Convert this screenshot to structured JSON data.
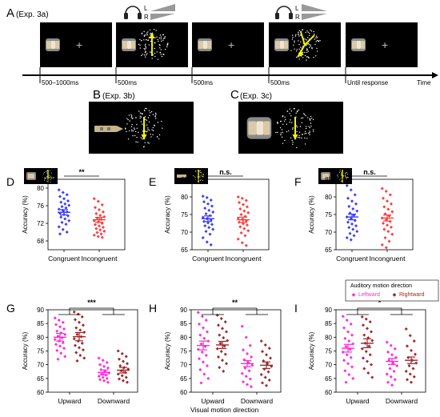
{
  "figure": {
    "panel_a": {
      "letter": "A",
      "title": "(Exp. 3a)",
      "headphone_labels": [
        "L",
        "R"
      ],
      "time_labels": [
        "500–1000ms",
        "500ms",
        "500ms",
        "500ms",
        "Until response"
      ],
      "axis_label": "Time"
    },
    "panel_b": {
      "letter": "B",
      "title": "(Exp. 3b)"
    },
    "panel_c": {
      "letter": "C",
      "title": "(Exp. 3c)"
    },
    "panel_ij_legend": {
      "title": "Auditory motion direction",
      "items": [
        "Leftward",
        "Rightward"
      ]
    },
    "shared_xlabel": "Visual motion direction",
    "colors": {
      "congruent": "#3b3bff",
      "incongruent": "#ff3b3b",
      "leftward": "#ff2bd6",
      "rightward": "#a0262a",
      "stimulus": "#f2f200"
    }
  },
  "chart_data": [
    {
      "id": "D",
      "type": "scatter",
      "ylabel": "Accuracy (%)",
      "ylim": [
        66,
        82
      ],
      "yticks": [
        68,
        72,
        76,
        80
      ],
      "categories": [
        "Congruent",
        "Incongruent"
      ],
      "significance": "**",
      "series": [
        {
          "mean": 74.5,
          "sem": 0.6,
          "points": [
            79.6,
            79.0,
            78.5,
            78.1,
            77.6,
            77.1,
            76.8,
            76.4,
            76.1,
            75.8,
            75.5,
            75.2,
            74.9,
            74.6,
            74.3,
            74.0,
            73.7,
            73.4,
            73.0,
            72.6,
            72.2,
            71.8,
            71.2,
            70.6,
            70.0,
            69.6
          ]
        },
        {
          "mean": 72.8,
          "sem": 0.55,
          "points": [
            77.6,
            77.0,
            76.2,
            75.6,
            75.1,
            74.6,
            74.2,
            73.8,
            73.5,
            73.2,
            72.9,
            72.6,
            72.3,
            72.0,
            71.7,
            71.4,
            71.1,
            70.8,
            70.5,
            70.2,
            69.9,
            69.6,
            69.3,
            69.0,
            68.8
          ]
        }
      ]
    },
    {
      "id": "E",
      "type": "scatter",
      "ylabel": "Accuracy (%)",
      "ylim": [
        65,
        85
      ],
      "yticks": [
        65,
        70,
        75,
        80,
        85
      ],
      "categories": [
        "Congruent",
        "Incongruent"
      ],
      "significance": "n.s.",
      "series": [
        {
          "mean": 73.8,
          "sem": 0.8,
          "points": [
            80.2,
            79.8,
            79.1,
            78.6,
            78.0,
            77.4,
            76.8,
            76.2,
            75.7,
            75.2,
            74.7,
            74.2,
            73.8,
            73.4,
            73.0,
            72.6,
            72.2,
            71.8,
            71.3,
            70.8,
            70.2,
            69.4,
            68.4,
            67.2,
            66.4
          ]
        },
        {
          "mean": 73.5,
          "sem": 0.75,
          "points": [
            80.0,
            79.6,
            79.0,
            78.4,
            77.8,
            77.2,
            76.6,
            76.0,
            75.5,
            75.0,
            74.5,
            74.0,
            73.6,
            73.2,
            72.8,
            72.4,
            72.0,
            71.5,
            71.0,
            70.4,
            69.8,
            69.0,
            68.0,
            67.0,
            66.2
          ]
        }
      ]
    },
    {
      "id": "F",
      "type": "scatter",
      "ylabel": "Accuracy (%)",
      "ylim": [
        65,
        85
      ],
      "yticks": [
        65,
        70,
        75,
        80,
        85
      ],
      "categories": [
        "Congruent",
        "Incongruent"
      ],
      "significance": "n.s.",
      "series": [
        {
          "mean": 74.3,
          "sem": 0.8,
          "points": [
            83.2,
            82.0,
            80.6,
            79.6,
            78.8,
            78.0,
            77.3,
            76.6,
            76.0,
            75.4,
            74.8,
            74.3,
            73.8,
            73.3,
            72.8,
            72.3,
            71.8,
            71.3,
            70.8,
            70.2,
            69.6,
            69.0,
            68.4,
            67.8
          ]
        },
        {
          "mean": 74.0,
          "sem": 0.85,
          "points": [
            82.4,
            81.6,
            80.6,
            79.6,
            78.8,
            78.0,
            77.2,
            76.5,
            75.8,
            75.2,
            74.6,
            74.0,
            73.5,
            73.0,
            72.5,
            72.0,
            71.4,
            70.8,
            70.2,
            69.4,
            68.4,
            67.4,
            66.4,
            65.6
          ]
        }
      ]
    },
    {
      "id": "G",
      "type": "scatter",
      "ylabel": "Accuracy (%)",
      "ylim": [
        60,
        90
      ],
      "yticks": [
        60,
        65,
        70,
        75,
        80,
        85,
        90
      ],
      "categories": [
        "Upward",
        "Downward"
      ],
      "significance": "***",
      "series": [
        {
          "name": "Leftward",
          "groups": [
            {
              "mean": 80,
              "sem": 1.4,
              "points": [
                87.0,
                86.2,
                85.4,
                84.6,
                83.8,
                83.0,
                82.2,
                81.6,
                81.0,
                80.4,
                79.8,
                79.2,
                78.6,
                78.0,
                77.4,
                76.8,
                76.0,
                75.2,
                74.2,
                73.0,
                72.0
              ]
            },
            {
              "mean": 67.2,
              "sem": 0.9,
              "points": [
                72.4,
                71.6,
                70.8,
                70.0,
                69.4,
                68.8,
                68.2,
                67.6,
                67.0,
                66.6,
                66.2,
                65.8,
                65.4,
                65.0,
                64.6,
                64.2,
                63.6
              ]
            }
          ]
        },
        {
          "name": "Rightward",
          "groups": [
            {
              "mean": 80.2,
              "sem": 1.5,
              "points": [
                89.2,
                88.4,
                87.4,
                86.4,
                85.4,
                84.4,
                83.4,
                82.6,
                81.8,
                81.0,
                80.2,
                79.4,
                78.6,
                77.8,
                77.0,
                76.2,
                75.4,
                74.4,
                73.4,
                72.4,
                71.4
              ]
            },
            {
              "mean": 68,
              "sem": 1.0,
              "points": [
                75.0,
                74.0,
                73.0,
                72.0,
                71.2,
                70.4,
                69.6,
                69.0,
                68.4,
                67.8,
                67.2,
                66.6,
                66.0,
                65.4,
                64.8,
                64.2,
                63.6
              ]
            }
          ]
        }
      ]
    },
    {
      "id": "H",
      "type": "scatter",
      "ylabel": "Accuracy (%)",
      "ylim": [
        60,
        90
      ],
      "yticks": [
        60,
        65,
        70,
        75,
        80,
        85,
        90
      ],
      "categories": [
        "Upward",
        "Downward"
      ],
      "significance": "**",
      "series": [
        {
          "name": "Leftward",
          "groups": [
            {
              "mean": 77,
              "sem": 1.6,
              "points": [
                89.0,
                87.6,
                86.2,
                84.8,
                83.4,
                82.0,
                80.8,
                79.6,
                78.6,
                77.6,
                76.6,
                75.6,
                74.6,
                73.4,
                72.2,
                71.0,
                69.6,
                68.2,
                66.6,
                65.0,
                63.4
              ]
            },
            {
              "mean": 70.4,
              "sem": 1.1,
              "points": [
                84.0,
                80.0,
                77.0,
                75.4,
                74.0,
                72.8,
                71.8,
                70.8,
                69.8,
                68.8,
                67.8,
                66.8,
                65.8,
                64.8,
                63.8,
                62.8,
                62.0
              ]
            }
          ]
        },
        {
          "name": "Rightward",
          "groups": [
            {
              "mean": 77.2,
              "sem": 1.3,
              "points": [
                88.0,
                86.8,
                85.6,
                84.4,
                83.2,
                82.0,
                80.8,
                79.8,
                78.8,
                77.8,
                76.8,
                75.8,
                74.8,
                73.8,
                72.8,
                71.6,
                70.4,
                69.0,
                67.6
              ]
            },
            {
              "mean": 69.8,
              "sem": 1.2,
              "points": [
                78.6,
                77.2,
                76.0,
                74.8,
                73.6,
                72.4,
                71.4,
                70.4,
                69.4,
                68.4,
                67.4,
                66.4,
                65.4,
                64.4,
                63.4,
                62.4
              ]
            }
          ]
        }
      ]
    },
    {
      "id": "I",
      "type": "scatter",
      "ylabel": "Accuracy (%)",
      "ylim": [
        60,
        90
      ],
      "yticks": [
        60,
        65,
        70,
        75,
        80,
        85,
        90
      ],
      "categories": [
        "Upward",
        "Downward"
      ],
      "significance": "*",
      "series": [
        {
          "name": "Leftward",
          "groups": [
            {
              "mean": 76,
              "sem": 1.4,
              "points": [
                87.6,
                86.2,
                84.8,
                83.4,
                82.0,
                80.8,
                79.6,
                78.6,
                77.6,
                76.6,
                75.6,
                74.6,
                73.6,
                72.6,
                71.6,
                70.4,
                69.2,
                67.8,
                66.4,
                65.0,
                63.6
              ]
            },
            {
              "mean": 71.2,
              "sem": 1.1,
              "points": [
                78.2,
                77.0,
                75.8,
                74.6,
                73.6,
                72.6,
                71.6,
                70.6,
                69.6,
                68.6,
                67.6,
                66.6,
                65.6,
                64.6,
                63.6,
                62.6
              ]
            }
          ]
        },
        {
          "name": "Rightward",
          "groups": [
            {
              "mean": 77.8,
              "sem": 1.6,
              "points": [
                87.4,
                86.6,
                85.6,
                84.4,
                83.2,
                82.0,
                80.8,
                79.8,
                78.8,
                77.8,
                76.8,
                75.8,
                74.8,
                73.6,
                72.4,
                71.2,
                70.0,
                68.6,
                67.0,
                65.4
              ]
            },
            {
              "mean": 71.6,
              "sem": 1.2,
              "points": [
                83.0,
                80.6,
                78.6,
                76.8,
                75.2,
                73.8,
                72.6,
                71.6,
                70.6,
                69.6,
                68.6,
                67.6,
                66.6,
                65.6,
                64.6,
                63.6
              ]
            }
          ]
        }
      ]
    }
  ]
}
